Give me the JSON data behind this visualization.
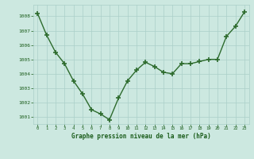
{
  "x": [
    0,
    1,
    2,
    3,
    4,
    5,
    6,
    7,
    8,
    9,
    10,
    11,
    12,
    13,
    14,
    15,
    16,
    17,
    18,
    19,
    20,
    21,
    22,
    23
  ],
  "y": [
    1008.2,
    1006.7,
    1005.5,
    1004.7,
    1003.5,
    1002.6,
    1001.5,
    1001.2,
    1000.8,
    1002.3,
    1003.5,
    1004.25,
    1004.8,
    1004.5,
    1004.1,
    1004.0,
    1004.7,
    1004.7,
    1004.85,
    1005.0,
    1005.0,
    1006.6,
    1007.3,
    1008.3
  ],
  "line_color": "#2d6b2d",
  "marker_color": "#2d6b2d",
  "bg_color": "#cce8e0",
  "grid_color": "#aacfc8",
  "axis_label_color": "#1a5c1a",
  "tick_label_color": "#1a5c1a",
  "xlabel": "Graphe pression niveau de la mer (hPa)",
  "ylim": [
    1000.5,
    1008.8
  ],
  "yticks": [
    1001,
    1002,
    1003,
    1004,
    1005,
    1006,
    1007,
    1008
  ],
  "xticks": [
    0,
    1,
    2,
    3,
    4,
    5,
    6,
    7,
    8,
    9,
    10,
    11,
    12,
    13,
    14,
    15,
    16,
    17,
    18,
    19,
    20,
    21,
    22,
    23
  ]
}
